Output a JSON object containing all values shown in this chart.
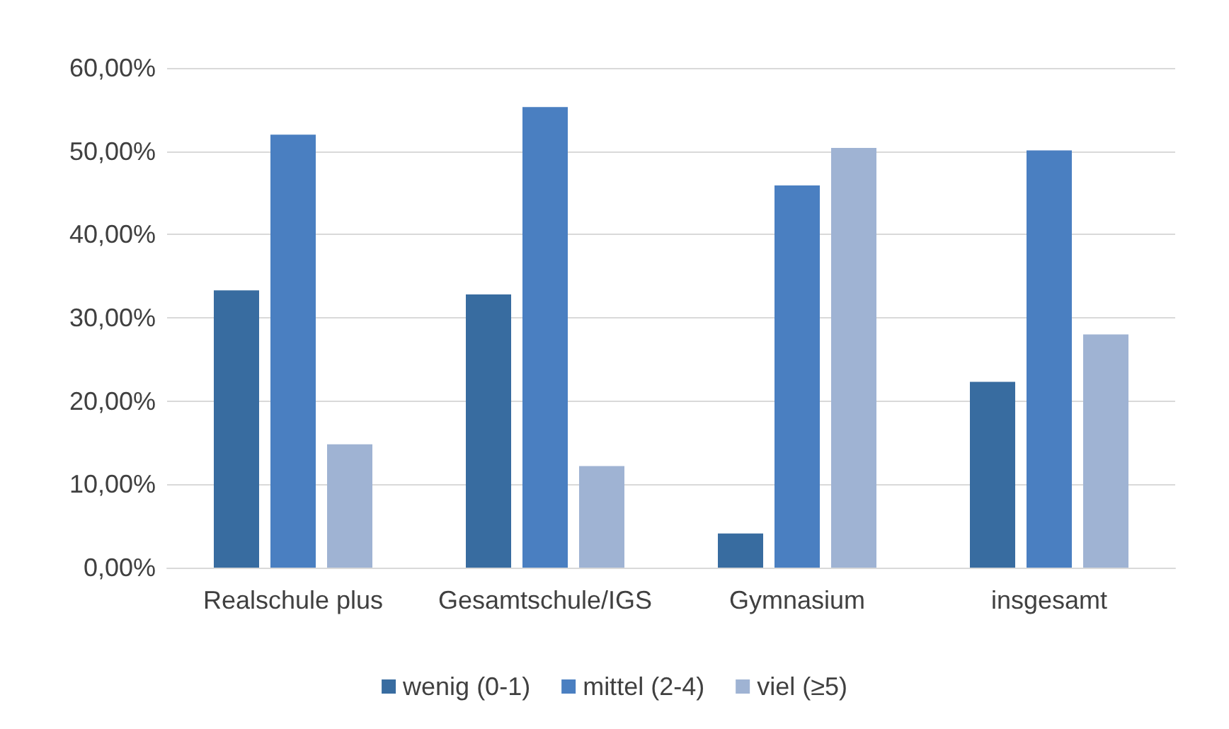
{
  "chart_data": {
    "type": "bar",
    "categories": [
      "Realschule plus",
      "Gesamtschule/IGS",
      "Gymnasium",
      "insgesamt"
    ],
    "series": [
      {
        "name": "wenig (0-1)",
        "color": "#386ca0",
        "values": [
          33.3,
          32.8,
          4.1,
          22.3
        ]
      },
      {
        "name": "mittel (2-4)",
        "color": "#4a7fc1",
        "values": [
          52.0,
          55.3,
          45.9,
          50.1
        ]
      },
      {
        "name": "viel (≥5)",
        "color": "#9fb3d3",
        "values": [
          14.8,
          12.2,
          50.4,
          28.0
        ]
      }
    ],
    "ylim": [
      0,
      60
    ],
    "yticks": [
      {
        "value": 0,
        "label": "0,00%"
      },
      {
        "value": 10,
        "label": "10,00%"
      },
      {
        "value": 20,
        "label": "20,00%"
      },
      {
        "value": 30,
        "label": "30,00%"
      },
      {
        "value": 40,
        "label": "40,00%"
      },
      {
        "value": 50,
        "label": "50,00%"
      },
      {
        "value": 60,
        "label": "60,00%"
      }
    ],
    "grid": "y",
    "legend": "bottom"
  }
}
